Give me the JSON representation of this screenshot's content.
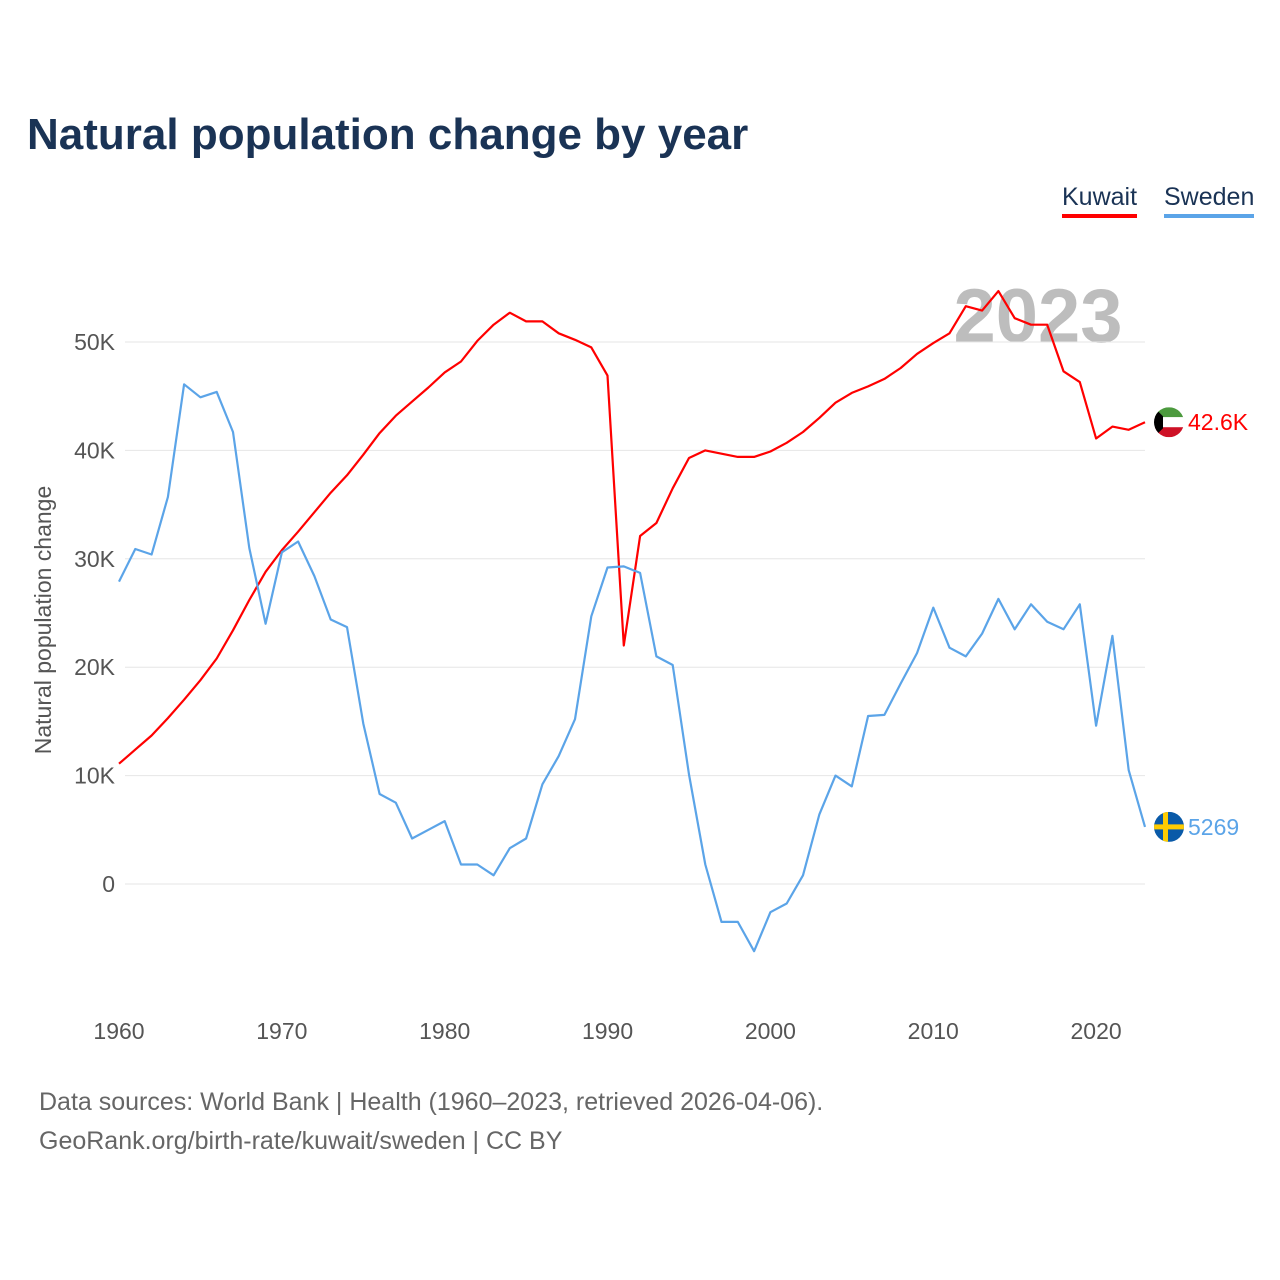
{
  "title": "Natural population change by year",
  "legend": [
    "Kuwait",
    "Sweden"
  ],
  "watermark_year": "2023",
  "sources": [
    "Data sources: World Bank | Health (1960–2023, retrieved 2026-04-06).",
    "GeoRank.org/birth-rate/kuwait/sweden | CC BY"
  ],
  "chart_data": {
    "type": "line",
    "title": "Natural population change by year",
    "xlabel": "",
    "ylabel": "Natural population change",
    "xlim": [
      1960,
      2023
    ],
    "ylim": [
      -10000,
      55000
    ],
    "xticks": [
      1960,
      1970,
      1980,
      1990,
      2000,
      2010,
      2020
    ],
    "yticks": [
      0,
      10000,
      20000,
      30000,
      40000,
      50000
    ],
    "ytick_labels": [
      "0",
      "10K",
      "20K",
      "30K",
      "40K",
      "50K"
    ],
    "grid": true,
    "legend_position": "top-right",
    "x": [
      1960,
      1961,
      1962,
      1963,
      1964,
      1965,
      1966,
      1967,
      1968,
      1969,
      1970,
      1971,
      1972,
      1973,
      1974,
      1975,
      1976,
      1977,
      1978,
      1979,
      1980,
      1981,
      1982,
      1983,
      1984,
      1985,
      1986,
      1987,
      1988,
      1989,
      1990,
      1991,
      1992,
      1993,
      1994,
      1995,
      1996,
      1997,
      1998,
      1999,
      2000,
      2001,
      2002,
      2003,
      2004,
      2005,
      2006,
      2007,
      2008,
      2009,
      2010,
      2011,
      2012,
      2013,
      2014,
      2015,
      2016,
      2017,
      2018,
      2019,
      2020,
      2021,
      2022,
      2023
    ],
    "series": [
      {
        "name": "Kuwait",
        "color": "#ff0000",
        "end_label": "42.6K",
        "values": [
          11100,
          12400,
          13700,
          15300,
          17000,
          18800,
          20800,
          23400,
          26200,
          28800,
          30800,
          32500,
          34300,
          36100,
          37700,
          39600,
          41600,
          43200,
          44500,
          45800,
          47200,
          48200,
          50100,
          51600,
          52700,
          51900,
          51900,
          50800,
          50200,
          49500,
          46900,
          22000,
          32100,
          33300,
          36500,
          39300,
          40000,
          39700,
          39400,
          39400,
          39900,
          40700,
          41700,
          43000,
          44400,
          45300,
          45900,
          46600,
          47600,
          48900,
          49900,
          50800,
          53300,
          52900,
          54700,
          52200,
          51600,
          51600,
          47300,
          46300,
          41100,
          42200,
          41900,
          42600
        ]
      },
      {
        "name": "Sweden",
        "color": "#5ba4e8",
        "end_label": "5269",
        "values": [
          27900,
          30900,
          30400,
          35700,
          46100,
          44900,
          45400,
          41700,
          31000,
          24000,
          30600,
          31600,
          28400,
          24400,
          23700,
          14800,
          8300,
          7500,
          4200,
          5000,
          5800,
          1800,
          1800,
          800,
          3300,
          4200,
          9200,
          11800,
          15200,
          24700,
          29200,
          29300,
          28700,
          21000,
          20200,
          10100,
          1800,
          -3500,
          -3500,
          -6200,
          -2600,
          -1800,
          800,
          6400,
          10000,
          9000,
          15500,
          15600,
          18500,
          21300,
          25500,
          21800,
          21000,
          23100,
          26300,
          23500,
          25800,
          24200,
          23500,
          25800,
          14600,
          22900,
          10500,
          5269
        ]
      }
    ]
  }
}
